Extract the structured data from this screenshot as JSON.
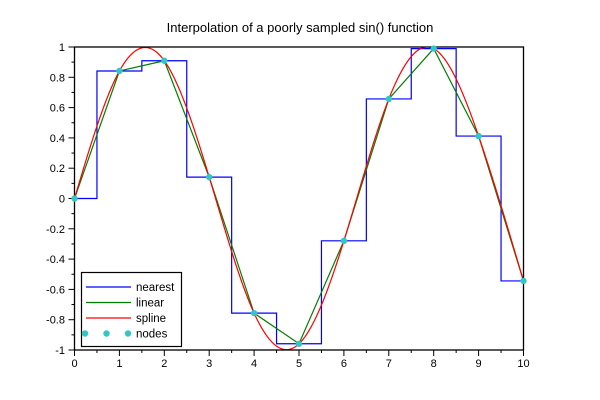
{
  "chart_data": {
    "type": "line",
    "title": "Interpolation of a poorly sampled sin() function",
    "xlabel": "",
    "ylabel": "",
    "xlim": [
      0,
      10
    ],
    "ylim": [
      -1,
      1
    ],
    "x_tick_labels": [
      "0",
      "1",
      "2",
      "3",
      "4",
      "5",
      "6",
      "7",
      "8",
      "9",
      "10"
    ],
    "x_ticks_major": [
      0,
      1,
      2,
      3,
      4,
      5,
      6,
      7,
      8,
      9,
      10
    ],
    "x_ticks_minor": [
      0.5,
      1.5,
      2.5,
      3.5,
      4.5,
      5.5,
      6.5,
      7.5,
      8.5,
      9.5
    ],
    "y_tick_labels": [
      "-1",
      "-0.8",
      "-0.6",
      "-0.4",
      "-0.2",
      "0",
      "0.2",
      "0.4",
      "0.6",
      "0.8",
      "1"
    ],
    "y_ticks_major": [
      -1,
      -0.8,
      -0.6,
      -0.4,
      -0.2,
      0,
      0.2,
      0.4,
      0.6,
      0.8,
      1
    ],
    "y_ticks_minor": [
      -0.9,
      -0.7,
      -0.5,
      -0.3,
      -0.1,
      0.1,
      0.3,
      0.5,
      0.7,
      0.9
    ],
    "grid": false,
    "background": "#ffffff",
    "frame_color": "#000000",
    "nodes": {
      "x": [
        0,
        1,
        2,
        3,
        4,
        5,
        6,
        7,
        8,
        9,
        10
      ],
      "y": [
        0,
        0.8415,
        0.9093,
        0.1411,
        -0.7568,
        -0.9589,
        -0.2794,
        0.657,
        0.9894,
        0.4121,
        -0.544
      ]
    },
    "series": [
      {
        "name": "nearest",
        "interp": "nearest",
        "color": "#0000ff"
      },
      {
        "name": "linear",
        "interp": "linear",
        "color": "#008000"
      },
      {
        "name": "spline",
        "interp": "spline",
        "color": "#ff0000"
      },
      {
        "name": "nodes",
        "interp": "points",
        "color": "#32c6c6"
      }
    ],
    "legend": {
      "position": "lower-left",
      "entries": [
        {
          "label": "nearest",
          "style": "line",
          "color": "#0000ff"
        },
        {
          "label": "linear",
          "style": "line",
          "color": "#008000"
        },
        {
          "label": "spline",
          "style": "line",
          "color": "#ff0000"
        },
        {
          "label": "nodes",
          "style": "points",
          "color": "#32c6c6"
        }
      ]
    }
  }
}
